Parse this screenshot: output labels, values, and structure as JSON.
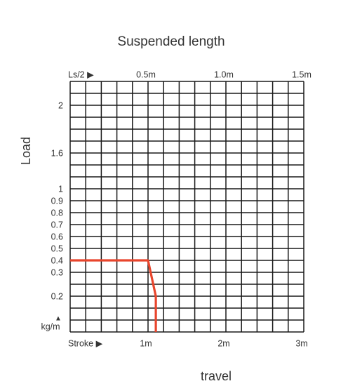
{
  "chart_data": {
    "type": "line",
    "title": "Suspended length",
    "ylabel": "Load",
    "xlabel": "travel",
    "x_axis_name": "Stroke ▶",
    "x2_axis_name": "Ls/2 ▶",
    "y_unit": "kg/m",
    "y_unit_arrow": "▲",
    "x": [
      0,
      1,
      1.1,
      1.1
    ],
    "values": [
      0.4,
      0.4,
      0.2,
      0
    ],
    "color": "#e8452c",
    "xlim": [
      0,
      3
    ],
    "xticks": [
      {
        "value": 1,
        "label": "1m"
      },
      {
        "value": 2,
        "label": "2m"
      },
      {
        "value": 3,
        "label": "3m"
      }
    ],
    "x2lim": [
      0,
      1.5
    ],
    "x2ticks": [
      {
        "value": 0.5,
        "label": "0.5m"
      },
      {
        "value": 1,
        "label": "1.0m"
      },
      {
        "value": 1.5,
        "label": "1.5m"
      }
    ],
    "ylim": [
      0,
      2.2
    ],
    "yticks": [
      null,
      null,
      null,
      0.2,
      null,
      0.3,
      0.4,
      0.5,
      0.6,
      0.7,
      0.8,
      0.9,
      1,
      null,
      null,
      1.6,
      null,
      null,
      null,
      2,
      null,
      null
    ],
    "grid": true
  }
}
